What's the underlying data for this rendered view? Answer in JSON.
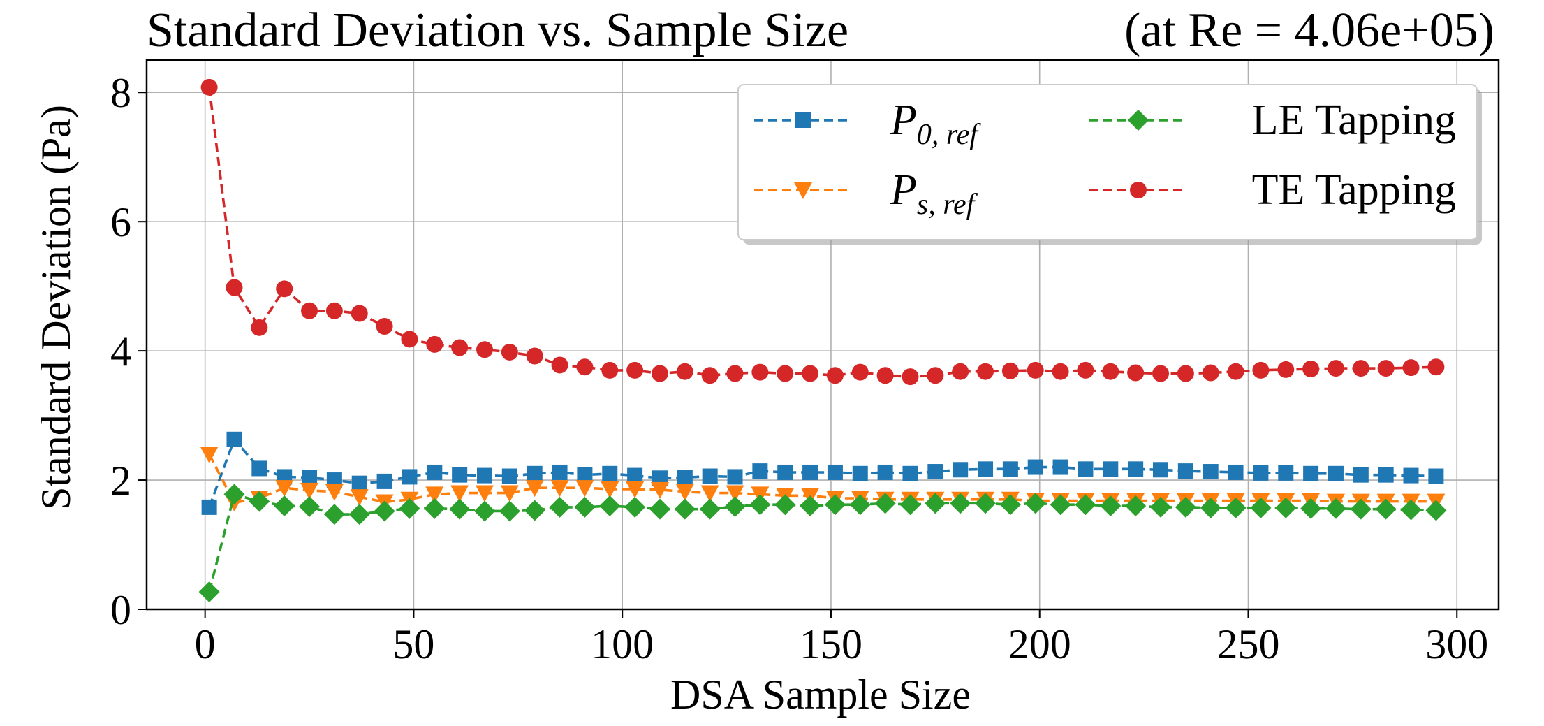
{
  "chart_data": {
    "type": "line",
    "title": "Standard Deviation vs. Sample Size",
    "title_right": "(at Re = 4.06e+05)",
    "xlabel": "DSA Sample Size",
    "ylabel": "Standard Deviation (Pa)",
    "xlim": [
      -14,
      310
    ],
    "ylim": [
      0,
      8.5
    ],
    "xticks": [
      0,
      50,
      100,
      150,
      200,
      250,
      300
    ],
    "yticks": [
      0,
      2,
      4,
      6,
      8
    ],
    "xtick_labels": [
      "0",
      "50",
      "100",
      "150",
      "200",
      "250",
      "300"
    ],
    "ytick_labels": [
      "0",
      "2",
      "4",
      "6",
      "8"
    ],
    "grid": true,
    "legend_position": "upper-right",
    "x": [
      1,
      7,
      13,
      19,
      25,
      31,
      37,
      43,
      49,
      55,
      61,
      67,
      73,
      79,
      85,
      91,
      97,
      103,
      109,
      115,
      121,
      127,
      133,
      139,
      145,
      151,
      157,
      163,
      169,
      175,
      181,
      187,
      193,
      199,
      205,
      211,
      217,
      223,
      229,
      235,
      241,
      247,
      253,
      259,
      265,
      271,
      277,
      283,
      289,
      295
    ],
    "series": [
      {
        "name": "P_{0, ref}",
        "color": "#1f77b4",
        "marker": "square",
        "values": [
          1.58,
          2.63,
          2.18,
          2.05,
          2.04,
          2.0,
          1.95,
          1.98,
          2.05,
          2.12,
          2.08,
          2.07,
          2.06,
          2.1,
          2.12,
          2.08,
          2.1,
          2.07,
          2.03,
          2.04,
          2.06,
          2.05,
          2.14,
          2.12,
          2.12,
          2.12,
          2.1,
          2.12,
          2.1,
          2.13,
          2.16,
          2.17,
          2.17,
          2.2,
          2.2,
          2.17,
          2.17,
          2.17,
          2.16,
          2.14,
          2.13,
          2.12,
          2.11,
          2.11,
          2.1,
          2.1,
          2.08,
          2.08,
          2.07,
          2.06
        ]
      },
      {
        "name": "P_{s, ref}",
        "color": "#ff7f0e",
        "marker": "triangle-down",
        "values": [
          2.4,
          1.65,
          1.72,
          1.88,
          1.84,
          1.82,
          1.74,
          1.66,
          1.7,
          1.78,
          1.8,
          1.8,
          1.8,
          1.88,
          1.88,
          1.88,
          1.86,
          1.86,
          1.85,
          1.82,
          1.8,
          1.8,
          1.78,
          1.76,
          1.76,
          1.72,
          1.72,
          1.7,
          1.7,
          1.7,
          1.7,
          1.7,
          1.7,
          1.68,
          1.68,
          1.68,
          1.68,
          1.68,
          1.68,
          1.68,
          1.68,
          1.68,
          1.68,
          1.68,
          1.68,
          1.67,
          1.67,
          1.67,
          1.67,
          1.67
        ]
      },
      {
        "name": "LE Tapping",
        "color": "#2ca02c",
        "marker": "diamond",
        "values": [
          0.27,
          1.78,
          1.67,
          1.6,
          1.59,
          1.47,
          1.47,
          1.52,
          1.56,
          1.56,
          1.55,
          1.52,
          1.52,
          1.53,
          1.58,
          1.58,
          1.6,
          1.58,
          1.55,
          1.55,
          1.55,
          1.59,
          1.62,
          1.62,
          1.6,
          1.62,
          1.62,
          1.64,
          1.62,
          1.64,
          1.64,
          1.64,
          1.62,
          1.64,
          1.62,
          1.62,
          1.6,
          1.6,
          1.58,
          1.58,
          1.57,
          1.57,
          1.57,
          1.57,
          1.56,
          1.56,
          1.55,
          1.55,
          1.54,
          1.53
        ]
      },
      {
        "name": "TE Tapping",
        "color": "#d62728",
        "marker": "circle",
        "values": [
          8.08,
          4.98,
          4.36,
          4.96,
          4.62,
          4.62,
          4.58,
          4.38,
          4.18,
          4.1,
          4.05,
          4.02,
          3.98,
          3.92,
          3.78,
          3.75,
          3.7,
          3.7,
          3.65,
          3.68,
          3.62,
          3.65,
          3.67,
          3.65,
          3.65,
          3.62,
          3.67,
          3.62,
          3.6,
          3.62,
          3.68,
          3.68,
          3.69,
          3.7,
          3.68,
          3.7,
          3.68,
          3.66,
          3.65,
          3.65,
          3.66,
          3.68,
          3.7,
          3.71,
          3.72,
          3.73,
          3.73,
          3.73,
          3.74,
          3.75
        ]
      }
    ]
  }
}
